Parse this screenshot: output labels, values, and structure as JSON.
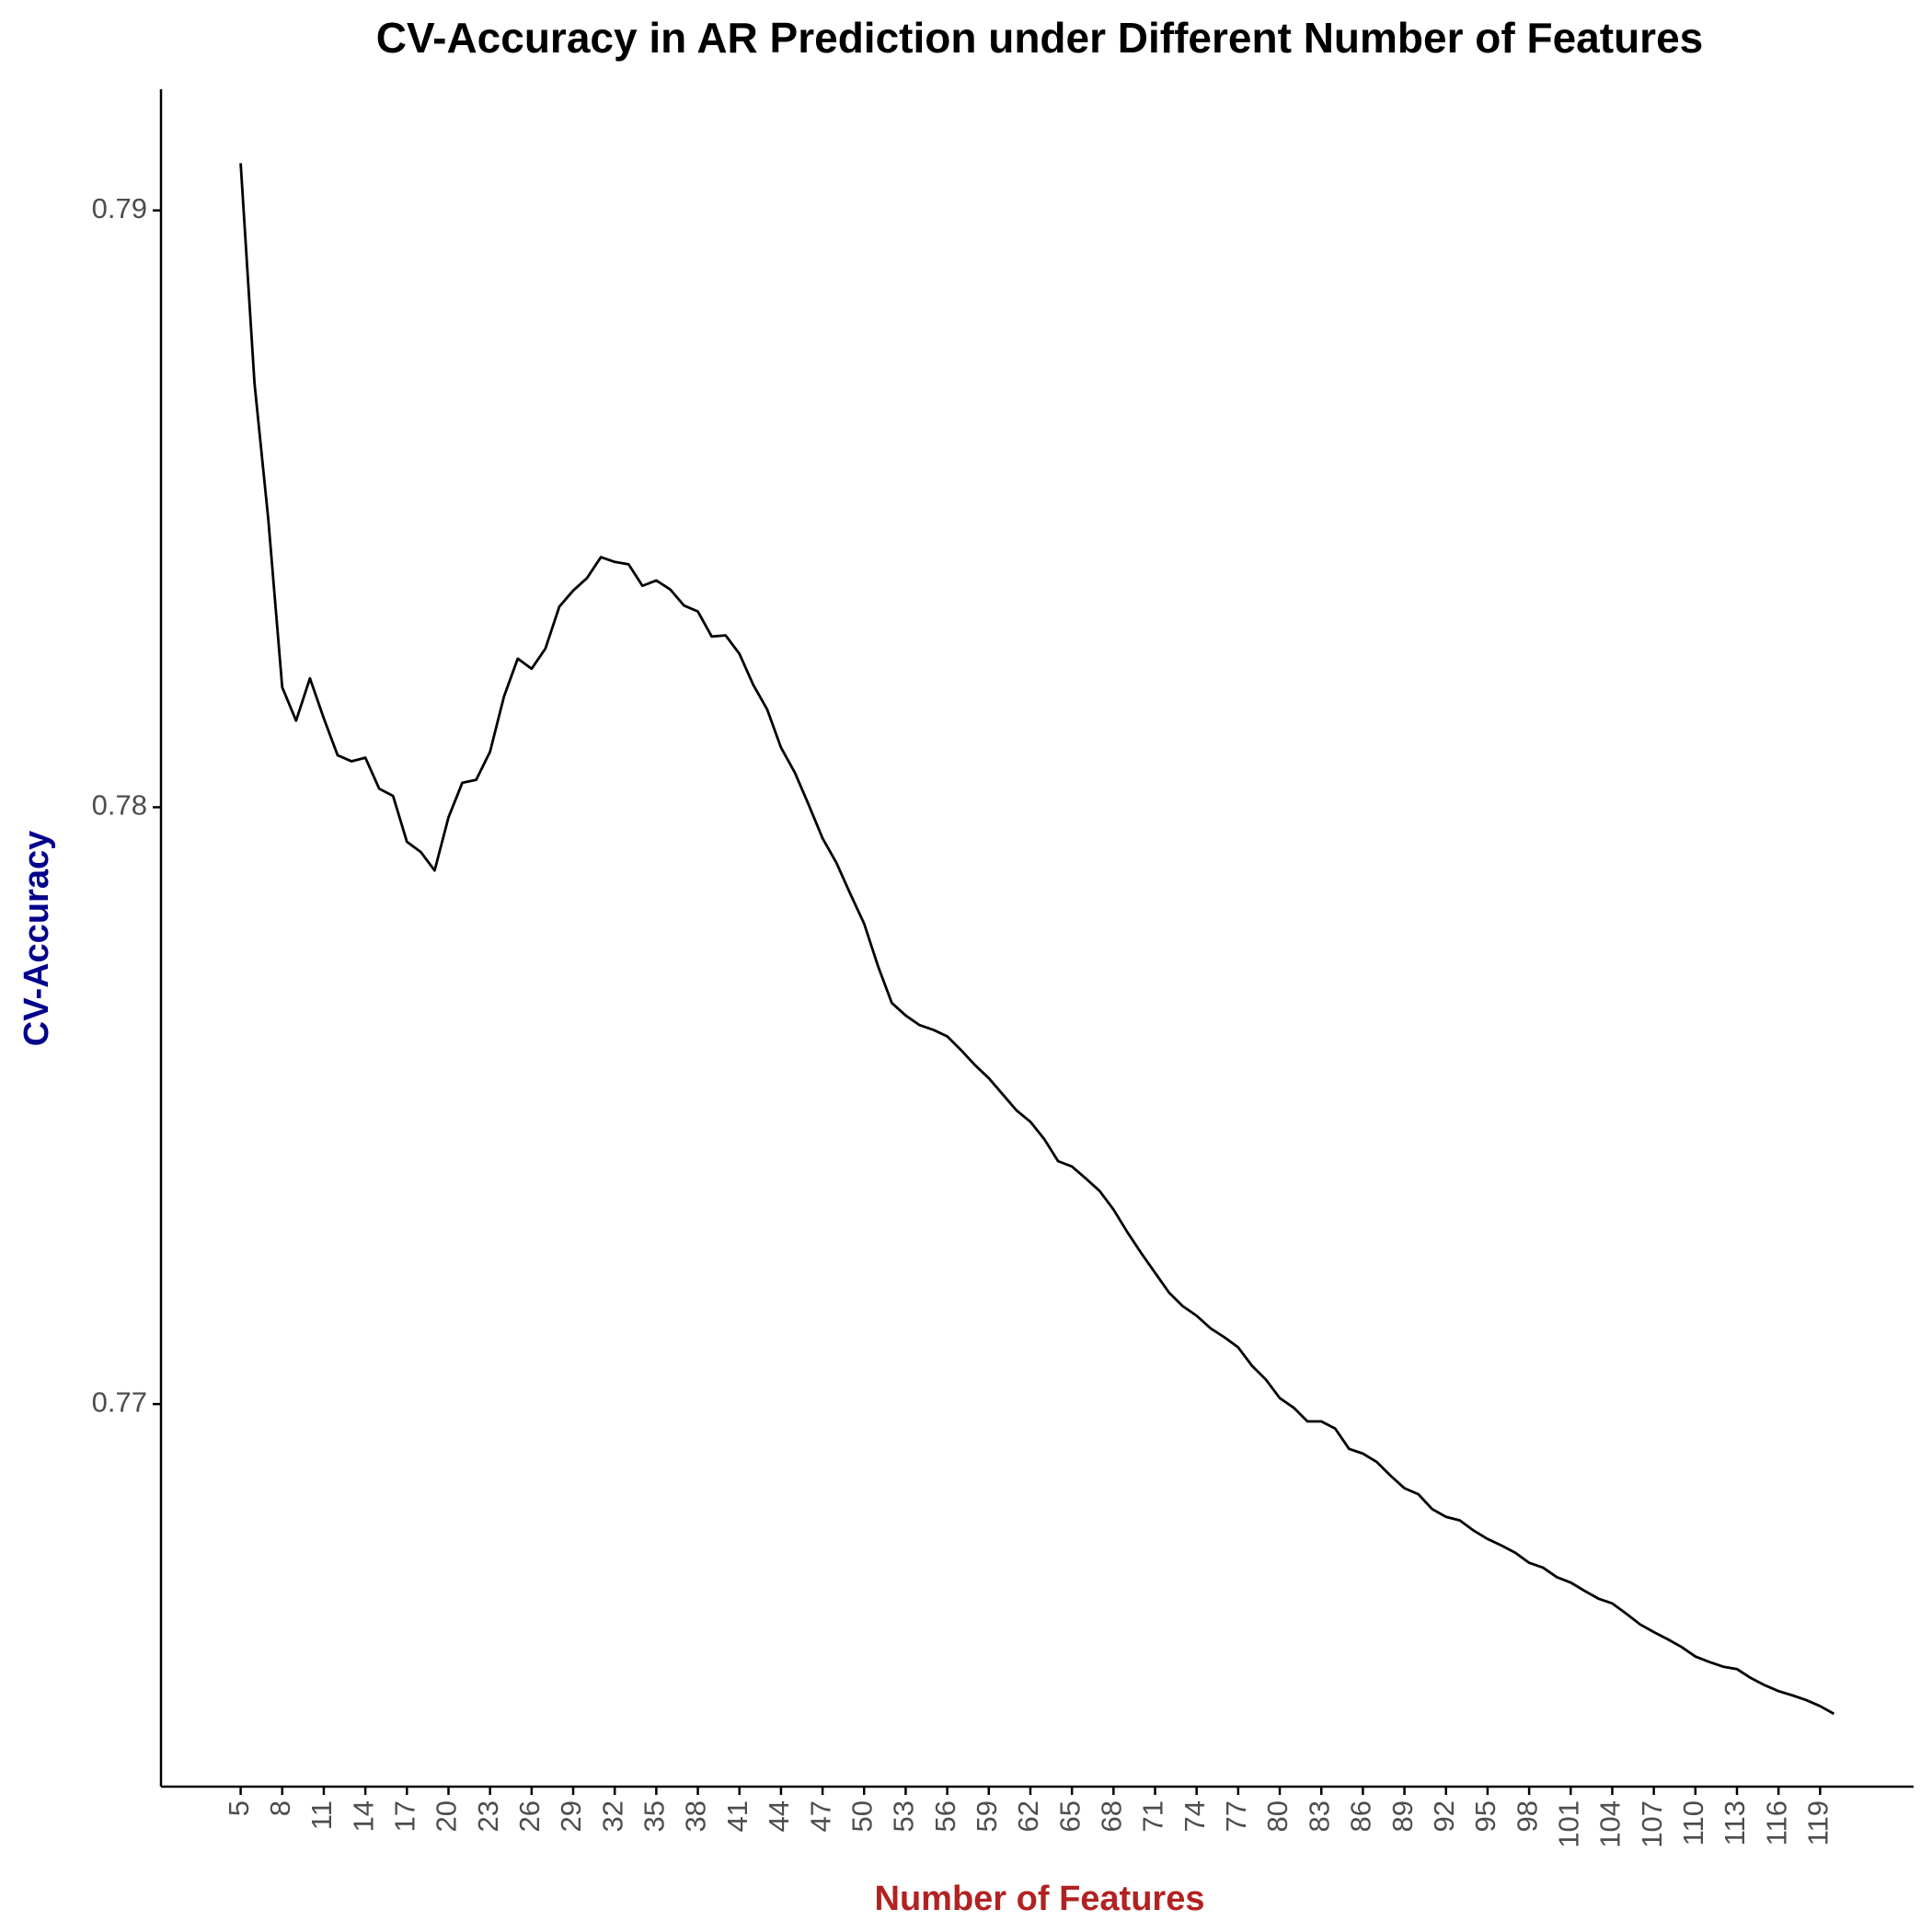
{
  "chart_data": {
    "type": "line",
    "title": "CV-Accuracy in AR Prediction under Different Number of Features",
    "xlabel": "Number of Features",
    "ylabel": "CV-Accuracy",
    "xlabel_color": "#b22222",
    "ylabel_color": "#00008b",
    "x": [
      5,
      6,
      7,
      8,
      9,
      10,
      11,
      12,
      13,
      14,
      15,
      16,
      17,
      18,
      19,
      20,
      21,
      22,
      23,
      24,
      25,
      26,
      27,
      28,
      29,
      30,
      31,
      32,
      33,
      34,
      35,
      36,
      37,
      38,
      39,
      40,
      41,
      42,
      43,
      44,
      45,
      46,
      47,
      48,
      49,
      50,
      51,
      52,
      53,
      54,
      55,
      56,
      57,
      58,
      59,
      60,
      61,
      62,
      63,
      64,
      65,
      66,
      67,
      68,
      69,
      70,
      71,
      72,
      73,
      74,
      75,
      76,
      77,
      78,
      79,
      80,
      81,
      82,
      83,
      84,
      85,
      86,
      87,
      88,
      89,
      90,
      91,
      92,
      93,
      94,
      95,
      96,
      97,
      98,
      99,
      100,
      101,
      102,
      103,
      104,
      105,
      106,
      107,
      108,
      109,
      110,
      111,
      112,
      113,
      114,
      115,
      116,
      117,
      118,
      119,
      120
    ],
    "series": [
      {
        "name": "CV-Accuracy",
        "color": "#000000",
        "values": [
          0.79079,
          0.7871,
          0.78481,
          0.78201,
          0.78145,
          0.78216,
          0.78149,
          0.78087,
          0.78077,
          0.78083,
          0.78031,
          0.78019,
          0.77942,
          0.77925,
          0.77894,
          0.77983,
          0.78041,
          0.78046,
          0.78093,
          0.78185,
          0.78249,
          0.78232,
          0.78266,
          0.78336,
          0.78363,
          0.78384,
          0.78419,
          0.78411,
          0.78407,
          0.78371,
          0.7838,
          0.78365,
          0.78338,
          0.78328,
          0.78286,
          0.78288,
          0.78257,
          0.78205,
          0.78164,
          0.781,
          0.78058,
          0.78004,
          0.77948,
          0.77907,
          0.77855,
          0.77805,
          0.77734,
          0.77672,
          0.77651,
          0.77635,
          0.77627,
          0.77616,
          0.77593,
          0.77568,
          0.77546,
          0.77519,
          0.77492,
          0.77473,
          0.77444,
          0.77407,
          0.77398,
          0.77378,
          0.77357,
          0.77326,
          0.77288,
          0.77253,
          0.7722,
          0.77187,
          0.77164,
          0.77148,
          0.77127,
          0.77112,
          0.77095,
          0.77064,
          0.77041,
          0.7701,
          0.76994,
          0.76971,
          0.76971,
          0.76959,
          0.76925,
          0.76917,
          0.76903,
          0.7688,
          0.76859,
          0.76849,
          0.76824,
          0.76811,
          0.76805,
          0.76788,
          0.76774,
          0.76763,
          0.76751,
          0.76734,
          0.76726,
          0.7671,
          0.76701,
          0.76687,
          0.76674,
          0.76666,
          0.76649,
          0.76631,
          0.76618,
          0.76606,
          0.76593,
          0.76577,
          0.76568,
          0.7656,
          0.76556,
          0.76541,
          0.76529,
          0.76519,
          0.76512,
          0.76504,
          0.76494,
          0.76481
        ]
      }
    ],
    "xlim": [
      -0.75,
      125.75
    ],
    "xticks": [
      5,
      8,
      11,
      14,
      17,
      20,
      23,
      26,
      29,
      32,
      35,
      38,
      41,
      44,
      47,
      50,
      53,
      56,
      59,
      62,
      65,
      68,
      71,
      74,
      77,
      80,
      83,
      86,
      89,
      92,
      95,
      98,
      101,
      104,
      107,
      110,
      113,
      116,
      119
    ],
    "ylim": [
      0.76359,
      0.79203
    ],
    "yticks": [
      0.77,
      0.78,
      0.79
    ],
    "grid": false
  }
}
